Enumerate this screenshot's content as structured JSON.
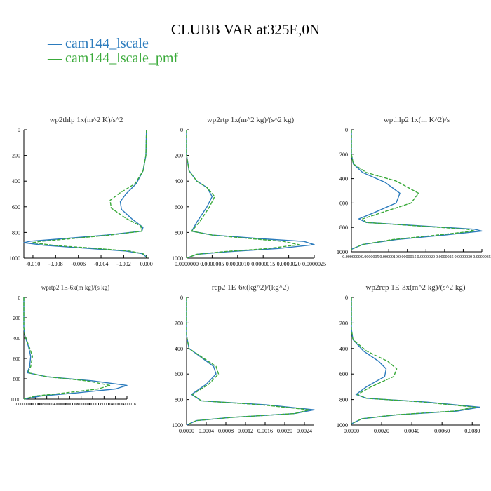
{
  "figure": {
    "title": "CLUBB VAR at325E,0N",
    "legend": [
      {
        "label": "cam144_lscale",
        "color": "#2b7bbd",
        "dash": "solid"
      },
      {
        "label": "cam144_lscale_pmf",
        "color": "#3aaa3a",
        "dash": "dashed"
      }
    ]
  },
  "chart_data": [
    {
      "type": "line",
      "title": "wp2thlp   1x(m^2 K)/s^2",
      "xlim": [
        -0.0108,
        0.0002
      ],
      "xticks": [
        -0.01,
        -0.008,
        -0.006,
        -0.004,
        -0.002,
        0.0
      ],
      "xtick_labels": [
        "-0.010",
        "-0.008",
        "-0.006",
        "-0.004",
        "-0.002",
        "0.000"
      ],
      "ylim": [
        1000,
        0
      ],
      "yticks": [
        0,
        200,
        400,
        600,
        800,
        1000
      ],
      "ytick_labels": [
        "0",
        "200",
        "400",
        "600",
        "800",
        "1000"
      ],
      "series": [
        {
          "name": "cam144_lscale",
          "x": [
            0,
            -5e-05,
            -0.0003,
            -0.0009,
            -0.0018,
            -0.0023,
            -0.0022,
            -0.0012,
            -0.0003,
            -0.0004,
            -0.0035,
            -0.0075,
            -0.0102,
            -0.0108,
            -0.009,
            -0.005,
            -0.0018,
            -0.0004,
            0
          ],
          "y": [
            0,
            200,
            320,
            420,
            500,
            560,
            620,
            700,
            760,
            790,
            820,
            850,
            868,
            880,
            900,
            925,
            945,
            965,
            990
          ]
        },
        {
          "name": "cam144_lscale_pmf",
          "x": [
            0,
            -5e-05,
            -0.0003,
            -0.001,
            -0.0023,
            -0.0032,
            -0.0031,
            -0.0018,
            -0.0005,
            -0.0004,
            -0.0032,
            -0.0068,
            -0.0094,
            -0.01,
            -0.008,
            -0.0043,
            -0.0015,
            -0.0003,
            0
          ],
          "y": [
            0,
            200,
            320,
            420,
            490,
            550,
            610,
            690,
            750,
            790,
            820,
            850,
            870,
            880,
            902,
            925,
            945,
            965,
            990
          ]
        }
      ]
    },
    {
      "type": "line",
      "title": "wp2rtp   1x(m^2 kg)/(s^2 kg)",
      "xlim": [
        0,
        2.5e-06
      ],
      "xticks": [
        0,
        5e-07,
        1e-06,
        1.5e-06,
        2e-06,
        2.5e-06
      ],
      "xtick_labels": [
        "0.0000000",
        "0.0000005",
        "0.0000010",
        "0.0000015",
        "0.0000020",
        "0.0000025"
      ],
      "ylim": [
        1000,
        0
      ],
      "yticks": [
        0,
        200,
        400,
        600,
        800,
        1000
      ],
      "ytick_labels": [
        "0",
        "200",
        "400",
        "600",
        "800",
        "1000"
      ],
      "series": [
        {
          "name": "cam144_lscale",
          "x": [
            0,
            0,
            5e-08,
            2e-07,
            4e-07,
            5e-07,
            4e-07,
            2e-07,
            1e-07,
            5e-07,
            1.5e-06,
            2.3e-06,
            2.5e-06,
            1.8e-06,
            8e-07,
            2e-07,
            0
          ],
          "y": [
            0,
            200,
            320,
            400,
            450,
            520,
            600,
            720,
            790,
            820,
            850,
            870,
            895,
            925,
            950,
            970,
            1000
          ]
        },
        {
          "name": "cam144_lscale_pmf",
          "x": [
            0,
            0,
            5e-08,
            2e-07,
            4e-07,
            5.5e-07,
            4.5e-07,
            2.5e-07,
            1e-07,
            5e-07,
            1.3e-06,
            1.9e-06,
            2.2e-06,
            1.6e-06,
            7e-07,
            2e-07,
            0
          ],
          "y": [
            0,
            200,
            320,
            400,
            450,
            520,
            600,
            720,
            790,
            820,
            850,
            870,
            895,
            925,
            950,
            970,
            1000
          ]
        }
      ]
    },
    {
      "type": "line",
      "title": "wpthlp2   1x(m K^2)/s",
      "xlim": [
        0,
        3.5e-06
      ],
      "xticks": [
        0,
        5e-07,
        1e-06,
        1.5e-06,
        2e-06,
        2.5e-06,
        3e-06,
        3.5e-06
      ],
      "xtick_labels": [
        "0.0000000",
        "0.0000005",
        "0.0000010",
        "0.0000015",
        "0.0000020",
        "0.0000025",
        "0.0000030",
        "0.0000035"
      ],
      "ylim": [
        1000,
        0
      ],
      "yticks": [
        0,
        200,
        400,
        600,
        800,
        1000
      ],
      "ytick_labels": [
        "0",
        "200",
        "400",
        "600",
        "800",
        "1000"
      ],
      "series": [
        {
          "name": "cam144_lscale",
          "x": [
            0,
            0,
            5e-08,
            3e-07,
            9e-07,
            1.3e-06,
            1.2e-06,
            6e-07,
            2e-07,
            4e-07,
            2e-06,
            3.3e-06,
            3.5e-06,
            2.6e-06,
            1.2e-06,
            3e-07,
            0
          ],
          "y": [
            0,
            200,
            280,
            350,
            430,
            520,
            600,
            680,
            730,
            760,
            790,
            815,
            830,
            860,
            900,
            940,
            980
          ]
        },
        {
          "name": "cam144_lscale_pmf",
          "x": [
            0,
            0,
            5e-08,
            4e-07,
            1.2e-06,
            1.8e-06,
            1.6e-06,
            8e-07,
            3e-07,
            4e-07,
            1.9e-06,
            3.1e-06,
            3.3e-06,
            2.4e-06,
            1.1e-06,
            3e-07,
            0
          ],
          "y": [
            0,
            200,
            280,
            350,
            420,
            520,
            600,
            680,
            730,
            760,
            790,
            815,
            830,
            860,
            900,
            940,
            980
          ]
        }
      ]
    },
    {
      "type": "line",
      "title": "wprtp2   1E-6x(m kg)/(s kg)",
      "xlim": [
        0,
        1.8e-06
      ],
      "xticks": [
        0,
        2e-07,
        4e-07,
        6e-07,
        8e-07,
        1e-06,
        1.2e-06,
        1.4e-06,
        1.6e-06,
        1.8e-06
      ],
      "xtick_labels": [
        "0.0000000",
        "0.0000002",
        "0.0000004",
        "0.0000006",
        "0.0000008",
        "0.0000010",
        "0.0000012",
        "0.0000014",
        "0.0000016",
        "0.0000018"
      ],
      "ylim": [
        1000,
        0
      ],
      "yticks": [
        0,
        200,
        400,
        600,
        800,
        1000
      ],
      "ytick_labels": [
        "0",
        "200",
        "400",
        "600",
        "800",
        "1000"
      ],
      "series": [
        {
          "name": "cam144_lscale",
          "x": [
            0,
            0,
            2e-08,
            8e-08,
            1.2e-07,
            1e-07,
            6e-08,
            4e-07,
            1.2e-06,
            1.8e-06,
            1.6e-06,
            9e-07,
            3e-07,
            0
          ],
          "y": [
            0,
            300,
            380,
            480,
            580,
            680,
            740,
            780,
            820,
            865,
            900,
            940,
            970,
            1000
          ]
        },
        {
          "name": "cam144_lscale_pmf",
          "x": [
            0,
            0,
            2e-08,
            9e-08,
            1.5e-07,
            1.2e-07,
            7e-08,
            4e-07,
            1.1e-06,
            1.5e-06,
            1.3e-06,
            7e-07,
            2e-07,
            0
          ],
          "y": [
            0,
            300,
            380,
            480,
            580,
            680,
            740,
            780,
            820,
            865,
            900,
            940,
            970,
            1000
          ]
        }
      ]
    },
    {
      "type": "line",
      "title": "rcp2   1E-6x(kg^2)/(kg^2)",
      "xlim": [
        0,
        0.0026
      ],
      "xticks": [
        0,
        0.0004,
        0.0008,
        0.0012,
        0.0016,
        0.002,
        0.0024
      ],
      "xtick_labels": [
        "0.0000",
        "0.0004",
        "0.0008",
        "0.0012",
        "0.0016",
        "0.0020",
        "0.0024"
      ],
      "ylim": [
        1000,
        0
      ],
      "yticks": [
        0,
        200,
        400,
        600,
        800,
        1000
      ],
      "ytick_labels": [
        "0",
        "200",
        "400",
        "600",
        "800",
        "1000"
      ],
      "series": [
        {
          "name": "cam144_lscale",
          "x": [
            0,
            0,
            5e-05,
            0.0003,
            0.00055,
            0.0006,
            0.0004,
            0.0001,
            0.0003,
            0.0016,
            0.0026,
            0.0022,
            0.0009,
            0.0002,
            0
          ],
          "y": [
            0,
            300,
            400,
            470,
            540,
            600,
            680,
            760,
            810,
            840,
            880,
            910,
            940,
            965,
            1000
          ]
        },
        {
          "name": "cam144_lscale_pmf",
          "x": [
            0,
            0,
            5e-05,
            0.00032,
            0.0006,
            0.00065,
            0.00045,
            0.00012,
            0.0003,
            0.0015,
            0.0025,
            0.0022,
            0.0009,
            0.0002,
            0
          ],
          "y": [
            0,
            300,
            400,
            470,
            540,
            600,
            680,
            760,
            810,
            840,
            880,
            910,
            940,
            965,
            1000
          ]
        }
      ]
    },
    {
      "type": "line",
      "title": "wp2rcp   1E-3x(m^2 kg)/(s^2 kg)",
      "xlim": [
        0,
        0.0085
      ],
      "xticks": [
        0,
        0.002,
        0.004,
        0.006,
        0.008
      ],
      "xtick_labels": [
        "0.0000",
        "0.0020",
        "0.0040",
        "0.0060",
        "0.0080"
      ],
      "ylim": [
        1000,
        0
      ],
      "yticks": [
        0,
        200,
        400,
        600,
        800,
        1000
      ],
      "ytick_labels": [
        "0",
        "200",
        "400",
        "600",
        "800",
        "1000"
      ],
      "series": [
        {
          "name": "cam144_lscale",
          "x": [
            0,
            0,
            0.0001,
            0.0008,
            0.0018,
            0.0023,
            0.0022,
            0.001,
            0.0003,
            0.001,
            0.005,
            0.0085,
            0.007,
            0.003,
            0.0007,
            0
          ],
          "y": [
            0,
            250,
            330,
            420,
            500,
            560,
            620,
            700,
            760,
            790,
            820,
            860,
            890,
            920,
            950,
            990
          ]
        },
        {
          "name": "cam144_lscale_pmf",
          "x": [
            0,
            0,
            0.0001,
            0.001,
            0.0024,
            0.003,
            0.0028,
            0.0013,
            0.0004,
            0.001,
            0.0048,
            0.0082,
            0.0068,
            0.0029,
            0.0007,
            0
          ],
          "y": [
            0,
            250,
            330,
            420,
            500,
            560,
            620,
            700,
            760,
            790,
            820,
            860,
            890,
            920,
            950,
            990
          ]
        }
      ]
    }
  ]
}
